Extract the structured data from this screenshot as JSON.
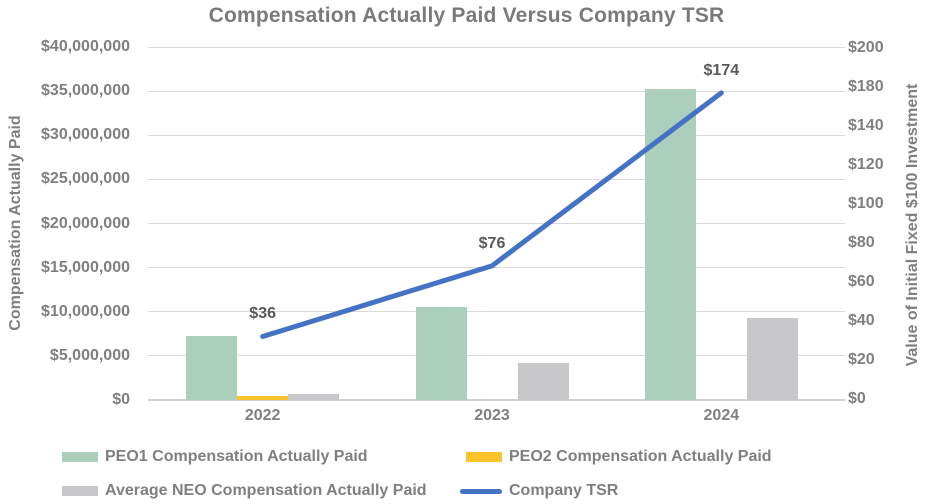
{
  "chart_data": {
    "type": "bar+line combo",
    "title": "Compensation Actually Paid Versus Company TSR",
    "categories": [
      "2022",
      "2023",
      "2024"
    ],
    "series": [
      {
        "name": "PEO1 Compensation Actually Paid",
        "type": "bar",
        "axis": "left",
        "color_key": "peo1",
        "values": [
          7200000,
          10500000,
          35200000
        ]
      },
      {
        "name": "PEO2 Compensation Actually Paid",
        "type": "bar",
        "axis": "left",
        "color_key": "peo2",
        "values": [
          450000,
          0,
          0
        ]
      },
      {
        "name": "Average NEO Compensation Actually Paid",
        "type": "bar",
        "axis": "left",
        "color_key": "neo",
        "values": [
          650000,
          4200000,
          9300000
        ]
      },
      {
        "name": "Company TSR",
        "type": "line",
        "axis": "right",
        "color_key": "tsr",
        "values": [
          36,
          76,
          174
        ],
        "data_labels": [
          "$36",
          "$76",
          "$174"
        ]
      }
    ],
    "left_axis": {
      "title": "Compensation Actually Paid",
      "min": 0,
      "max": 40000000,
      "ticks": [
        "$40,000,000",
        "$35,000,000",
        "$30,000,000",
        "$25,000,000",
        "$20,000,000",
        "$15,000,000",
        "$10,000,000",
        "$5,000,000",
        "$0"
      ]
    },
    "right_axis": {
      "title": "Value of Initial Fixed $100 Investment",
      "min": 0,
      "max": 200,
      "ticks": [
        "$200",
        "$180",
        "$140",
        "$120",
        "$100",
        "$80",
        "$60",
        "$40",
        "$20",
        "$0"
      ]
    },
    "grid": "horizontal",
    "legend_position": "bottom-two-columns",
    "colors": {
      "peo1": "#abcebd",
      "peo2": "#fcc32d",
      "neo": "#c8c8ca",
      "tsr": "#4472c4",
      "gridline": "#d9d9d9",
      "axis_text": "#7f7f7f",
      "data_label_text": "#595959",
      "title_text": "#7a7a7a"
    }
  }
}
